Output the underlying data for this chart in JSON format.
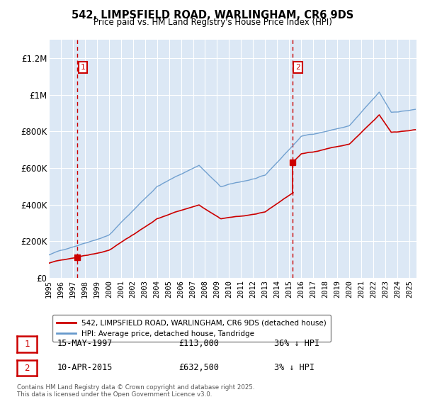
{
  "title": "542, LIMPSFIELD ROAD, WARLINGHAM, CR6 9DS",
  "subtitle": "Price paid vs. HM Land Registry's House Price Index (HPI)",
  "ylim": [
    0,
    1300000
  ],
  "yticks": [
    0,
    200000,
    400000,
    600000,
    800000,
    1000000,
    1200000
  ],
  "ytick_labels": [
    "£0",
    "£200K",
    "£400K",
    "£600K",
    "£800K",
    "£1M",
    "£1.2M"
  ],
  "xstart_year": 1995,
  "xend_year": 2025,
  "sale1_year": 1997.37,
  "sale1_price": 113000,
  "sale1_label": "1",
  "sale1_text": "15-MAY-1997",
  "sale1_amount": "£113,000",
  "sale1_hpi": "36% ↓ HPI",
  "sale2_year": 2015.27,
  "sale2_price": 632500,
  "sale2_label": "2",
  "sale2_text": "10-APR-2015",
  "sale2_amount": "£632,500",
  "sale2_hpi": "3% ↓ HPI",
  "line_color_property": "#cc0000",
  "line_color_hpi": "#6699cc",
  "dashed_vline_color": "#cc0000",
  "bg_color": "#dce8f5",
  "legend_label_property": "542, LIMPSFIELD ROAD, WARLINGHAM, CR6 9DS (detached house)",
  "legend_label_hpi": "HPI: Average price, detached house, Tandridge",
  "footer": "Contains HM Land Registry data © Crown copyright and database right 2025.\nThis data is licensed under the Open Government Licence v3.0."
}
